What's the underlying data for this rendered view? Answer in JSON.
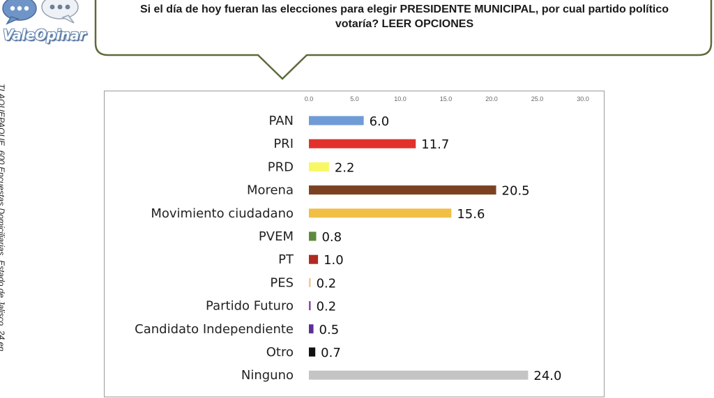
{
  "logo": {
    "text": "ValeOpinar"
  },
  "question": {
    "line1": "Si el día de hoy fueran las elecciones para elegir PRESIDENTE MUNICIPAL, por cual partido político",
    "line2": "votaría? LEER OPCIONES"
  },
  "side_note": "TLAQUEPAQUE, 600 Encuestas Domiciliarias, Estado de Jalisco, 24 en",
  "colors": {
    "callout_border": "#5b6b3a",
    "logo_blue": "#5f88c0"
  },
  "chart_data": {
    "type": "bar",
    "orientation": "horizontal",
    "categories": [
      "PAN",
      "PRI",
      "PRD",
      "Morena",
      "Movimiento ciudadano",
      "PVEM",
      "PT",
      "PES",
      "Partido Futuro",
      "Candidato Independiente",
      "Otro",
      "Ninguno"
    ],
    "values": [
      6.0,
      11.7,
      2.2,
      20.5,
      15.6,
      0.8,
      1.0,
      0.2,
      0.2,
      0.5,
      0.7,
      24.0
    ],
    "value_labels": [
      "6.0",
      "11.7",
      "2.2",
      "20.5",
      "15.6",
      "0.8",
      "1.0",
      "0.2",
      "0.2",
      "0.5",
      "0.7",
      "24.0"
    ],
    "colors": [
      "#6f9bd6",
      "#e0322b",
      "#f8f865",
      "#7b4222",
      "#f2bf45",
      "#5f8a3c",
      "#b02a22",
      "#f2c7a0",
      "#8b4fa8",
      "#5c2f96",
      "#111111",
      "#c4c4c4"
    ],
    "xlim": [
      0,
      30
    ],
    "ticks": [
      0.0,
      5.0,
      10.0,
      15.0,
      20.0,
      25.0,
      30.0
    ],
    "tick_labels": [
      "0.0",
      "5.0",
      "10.0",
      "15.0",
      "20.0",
      "25.0",
      "30.0"
    ],
    "axis_position": "top",
    "grid": false,
    "legend": "none",
    "title": "",
    "xlabel": "",
    "ylabel": ""
  }
}
